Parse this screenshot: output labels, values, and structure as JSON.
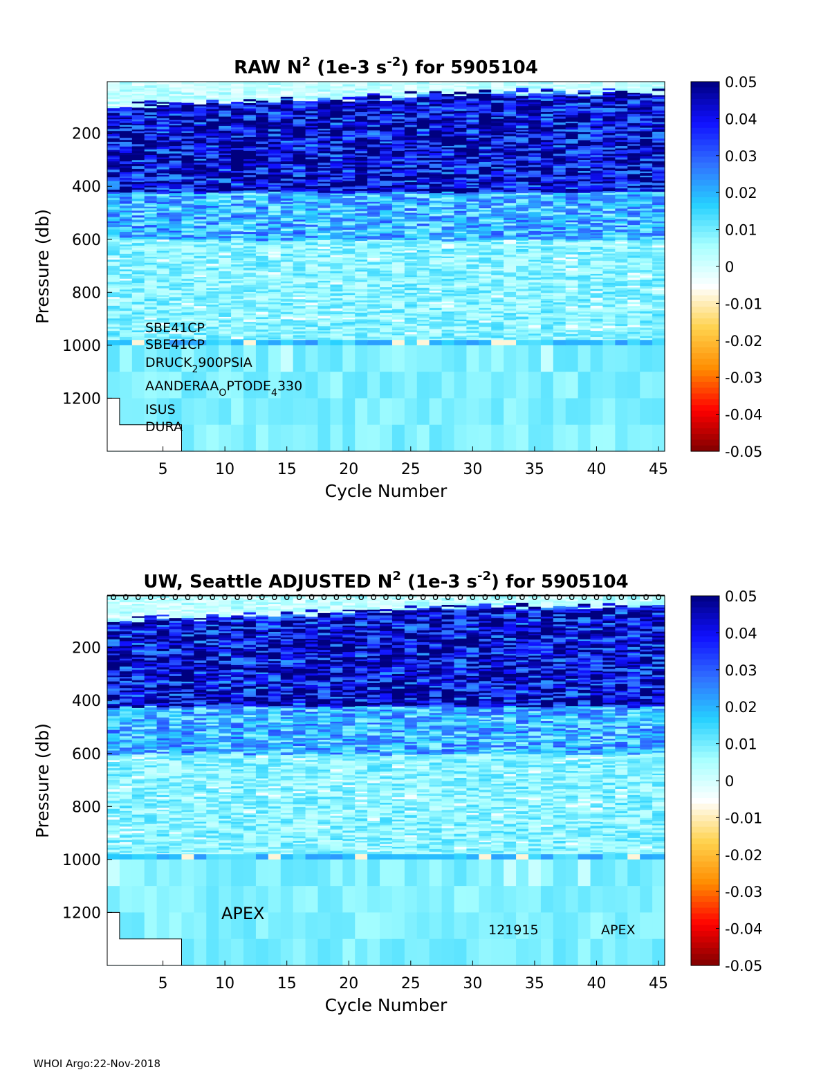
{
  "footer": "WHOI Argo:22-Nov-2018",
  "colors": {
    "colormap": [
      "#800000",
      "#ff0000",
      "#ff8c00",
      "#ffd24d",
      "#ffffff",
      "#a8ffff",
      "#26d0ff",
      "#3070ff",
      "#1010ff",
      "#00007f"
    ],
    "axis": "#000000",
    "empty": "#ffffff"
  },
  "chart_data": [
    {
      "type": "heatmap",
      "title_main": "RAW N",
      "title_sup1": "2",
      "title_mid": " (1e-3 s",
      "title_sup2": "-2",
      "title_end": ") for 5905104",
      "xlabel": "Cycle Number",
      "ylabel": "Pressure (db)",
      "x_ticks": [
        5,
        10,
        15,
        20,
        25,
        30,
        35,
        40,
        45
      ],
      "y_ticks": [
        200,
        400,
        600,
        800,
        1000,
        1200
      ],
      "xlim": [
        1,
        45
      ],
      "ylim": [
        1400,
        5
      ],
      "clim": [
        -0.05,
        0.05
      ],
      "colorbar_ticks": [
        "0.05",
        "0.04",
        "0.03",
        "0.02",
        "0.01",
        "0",
        "-0.01",
        "-0.02",
        "-0.03",
        "-0.04",
        "-0.05"
      ],
      "max_pressure_by_cycle": [
        1200,
        1300,
        1300,
        1300,
        1300,
        1300,
        1400
      ],
      "annotations": [
        {
          "text": "SBE41CP"
        },
        {
          "text": "SBE41CP"
        },
        {
          "text": "DRUCK",
          "sub": "2",
          "rest": "900PSIA"
        },
        {
          "text": "AANDERAA",
          "sub": "O",
          "rest": "PTODE",
          "sub2": "4",
          "rest2": "330"
        },
        {
          "text": "ISUS"
        },
        {
          "text": "DURA"
        }
      ]
    },
    {
      "type": "heatmap",
      "title_main": "UW, Seattle  ADJUSTED N",
      "title_sup1": "2",
      "title_mid": " (1e-3 s",
      "title_sup2": "-2",
      "title_end": ") for 5905104",
      "xlabel": "Cycle Number",
      "ylabel": "Pressure (db)",
      "x_ticks": [
        5,
        10,
        15,
        20,
        25,
        30,
        35,
        40,
        45
      ],
      "y_ticks": [
        200,
        400,
        600,
        800,
        1000,
        1200
      ],
      "xlim": [
        1,
        45
      ],
      "ylim": [
        1400,
        5
      ],
      "clim": [
        -0.05,
        0.05
      ],
      "colorbar_ticks": [
        "0.05",
        "0.04",
        "0.03",
        "0.02",
        "0.01",
        "0",
        "-0.01",
        "-0.02",
        "-0.03",
        "-0.04",
        "-0.05"
      ],
      "max_pressure_by_cycle": [
        1200,
        1300,
        1300,
        1300,
        1300,
        1300,
        1400
      ],
      "qc_marker": "o",
      "annotations": [
        {
          "text": "APEX"
        },
        {
          "text": "121915"
        },
        {
          "text": "APEX"
        }
      ]
    }
  ]
}
